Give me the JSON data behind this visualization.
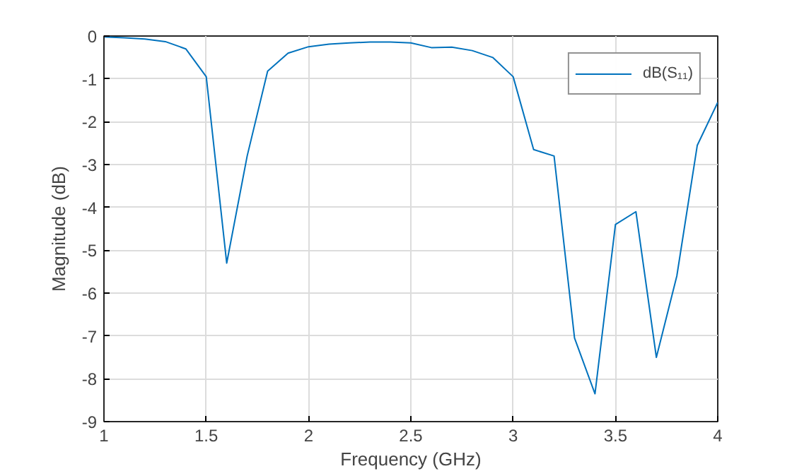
{
  "chart_data": {
    "type": "line",
    "xlabel": "Frequency (GHz)",
    "ylabel": "Magnitude (dB)",
    "x": [
      1.0,
      1.1,
      1.2,
      1.3,
      1.4,
      1.5,
      1.6,
      1.7,
      1.8,
      1.9,
      2.0,
      2.1,
      2.2,
      2.3,
      2.4,
      2.5,
      2.6,
      2.7,
      2.8,
      2.9,
      3.0,
      3.1,
      3.2,
      3.3,
      3.4,
      3.5,
      3.6,
      3.7,
      3.8,
      3.9,
      4.0
    ],
    "series": [
      {
        "name": "dB(S₁₁)",
        "color": "#0072bd",
        "values": [
          -0.02,
          -0.04,
          -0.07,
          -0.13,
          -0.3,
          -0.95,
          -5.3,
          -2.8,
          -0.82,
          -0.4,
          -0.25,
          -0.19,
          -0.16,
          -0.14,
          -0.14,
          -0.16,
          -0.27,
          -0.26,
          -0.34,
          -0.5,
          -0.95,
          -2.65,
          -2.8,
          -7.05,
          -8.35,
          -4.4,
          -4.1,
          -7.5,
          -5.6,
          -2.55,
          -1.55
        ]
      }
    ],
    "xlim": [
      1,
      4
    ],
    "ylim": [
      -9,
      0
    ],
    "xticks": [
      1,
      1.5,
      2,
      2.5,
      3,
      3.5,
      4
    ],
    "yticks": [
      -9,
      -8,
      -7,
      -6,
      -5,
      -4,
      -3,
      -2,
      -1,
      0
    ],
    "grid": true,
    "legend": "top right",
    "line_style": "solid",
    "marker": "none"
  }
}
